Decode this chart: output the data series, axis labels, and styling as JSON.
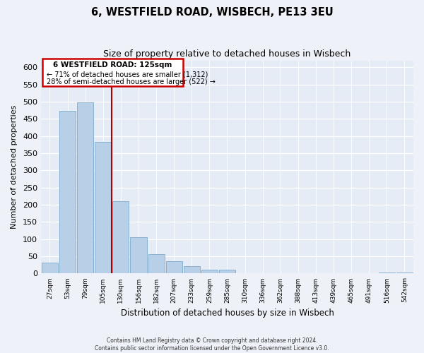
{
  "title": "6, WESTFIELD ROAD, WISBECH, PE13 3EU",
  "subtitle": "Size of property relative to detached houses in Wisbech",
  "xlabel": "Distribution of detached houses by size in Wisbech",
  "ylabel": "Number of detached properties",
  "bar_labels": [
    "27sqm",
    "53sqm",
    "79sqm",
    "105sqm",
    "130sqm",
    "156sqm",
    "182sqm",
    "207sqm",
    "233sqm",
    "259sqm",
    "285sqm",
    "310sqm",
    "336sqm",
    "362sqm",
    "388sqm",
    "413sqm",
    "439sqm",
    "465sqm",
    "491sqm",
    "516sqm",
    "542sqm"
  ],
  "bar_values": [
    32,
    474,
    497,
    382,
    210,
    105,
    57,
    35,
    21,
    12,
    11,
    0,
    0,
    0,
    0,
    0,
    0,
    0,
    0,
    2,
    2
  ],
  "bar_color": "#b8cfe8",
  "bar_edge_color": "#7eaacc",
  "highlight_line_color": "#aa0000",
  "annotation_title": "6 WESTFIELD ROAD: 125sqm",
  "annotation_line1": "← 71% of detached houses are smaller (1,312)",
  "annotation_line2": "28% of semi-detached houses are larger (522) →",
  "annotation_box_color": "#cc0000",
  "ylim": [
    0,
    620
  ],
  "yticks": [
    0,
    50,
    100,
    150,
    200,
    250,
    300,
    350,
    400,
    450,
    500,
    550,
    600
  ],
  "footer_line1": "Contains HM Land Registry data © Crown copyright and database right 2024.",
  "footer_line2": "Contains public sector information licensed under the Open Government Licence v3.0.",
  "bg_color": "#eef2f8",
  "plot_bg_color": "#e6ecf5"
}
